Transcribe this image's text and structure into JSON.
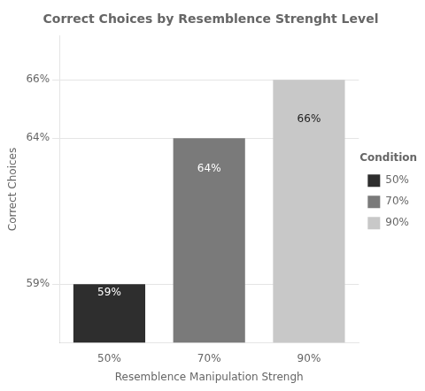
{
  "chart_data": {
    "type": "bar",
    "title": "Correct Choices by Resemblence Strenght Level",
    "xlabel": "Resemblence Manipulation Strengh",
    "ylabel": "Correct Choices",
    "categories": [
      "50%",
      "70%",
      "90%"
    ],
    "values": [
      0.59,
      0.64,
      0.66
    ],
    "value_labels": [
      "59%",
      "64%",
      "66%"
    ],
    "data_labels": true,
    "colors": [
      "#2e2e2e",
      "#7a7a7a",
      "#c8c8c8"
    ],
    "ylim": [
      0.57,
      0.675
    ],
    "yticks": [
      {
        "value": 0.59,
        "label": "59%"
      },
      {
        "value": 0.64,
        "label": "64%"
      },
      {
        "value": 0.66,
        "label": "66%"
      }
    ],
    "grid": true,
    "legend": "right",
    "legend_title": "Condition"
  }
}
